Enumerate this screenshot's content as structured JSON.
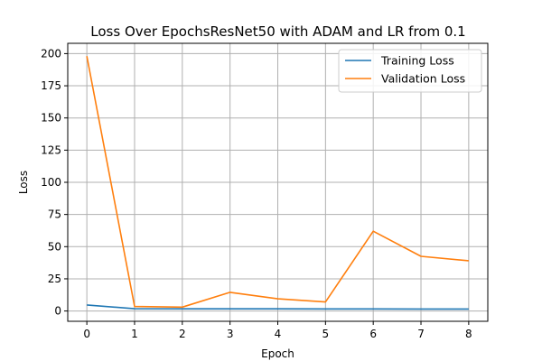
{
  "chart_data": {
    "type": "line",
    "title": "Loss Over EpochsResNet50 with ADAM and LR from 0.1",
    "xlabel": "Epoch",
    "ylabel": "Loss",
    "x": [
      0,
      1,
      2,
      3,
      4,
      5,
      6,
      7,
      8
    ],
    "xlim": [
      -0.4,
      8.4
    ],
    "ylim": [
      -8,
      208
    ],
    "xticks": [
      0,
      1,
      2,
      3,
      4,
      5,
      6,
      7,
      8
    ],
    "yticks": [
      0,
      25,
      50,
      75,
      100,
      125,
      150,
      175,
      200
    ],
    "grid": true,
    "legend_position": "top-right",
    "series": [
      {
        "name": "Training Loss",
        "color": "#1f77b4",
        "values": [
          4.7,
          1.8,
          1.7,
          1.7,
          1.7,
          1.6,
          1.6,
          1.5,
          1.5
        ]
      },
      {
        "name": "Validation Loss",
        "color": "#ff7f0e",
        "values": [
          198,
          3.5,
          3.0,
          14.5,
          9.5,
          7.0,
          62,
          42.5,
          39
        ]
      }
    ]
  }
}
